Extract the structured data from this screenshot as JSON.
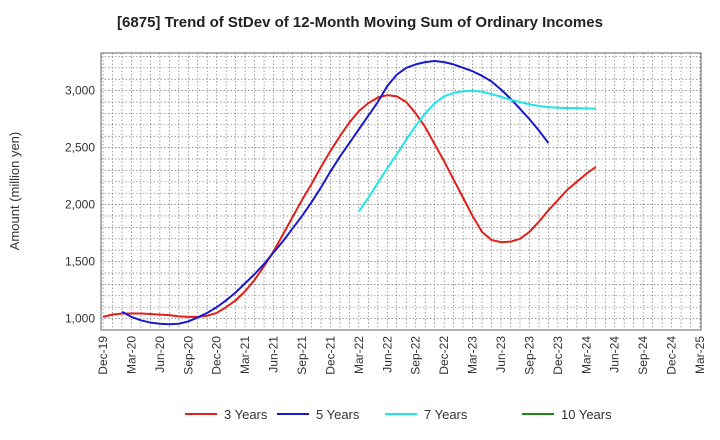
{
  "chart_data": {
    "type": "line",
    "title": "[6875]  Trend of StDev of 12-Month Moving Sum of Ordinary Incomes",
    "xlabel": "",
    "ylabel": "Amount (million yen)",
    "ylim": [
      900,
      3330
    ],
    "yticks": [
      1000,
      1500,
      2000,
      2500,
      3000
    ],
    "ytick_labels": [
      "1,000",
      "1,500",
      "2,000",
      "2,500",
      "3,000"
    ],
    "x_tick_labels": [
      "Dec-19",
      "Mar-20",
      "Jun-20",
      "Sep-20",
      "Dec-20",
      "Mar-21",
      "Jun-21",
      "Sep-21",
      "Dec-21",
      "Mar-22",
      "Jun-22",
      "Sep-22",
      "Dec-22",
      "Mar-23",
      "Jun-23",
      "Sep-23",
      "Dec-23",
      "Mar-24",
      "Jun-24",
      "Sep-24",
      "Dec-24",
      "Mar-25"
    ],
    "x_start": "Dec-19",
    "n_months": 64,
    "series": [
      {
        "name": "3 Years",
        "color": "#e0201b",
        "start_month": 0,
        "values": [
          1015,
          1035,
          1045,
          1045,
          1045,
          1040,
          1035,
          1030,
          1020,
          1015,
          1015,
          1025,
          1050,
          1100,
          1160,
          1240,
          1340,
          1460,
          1590,
          1740,
          1890,
          2040,
          2180,
          2330,
          2470,
          2600,
          2720,
          2820,
          2890,
          2940,
          2960,
          2950,
          2900,
          2800,
          2680,
          2530,
          2380,
          2220,
          2060,
          1900,
          1760,
          1690,
          1670,
          1675,
          1700,
          1760,
          1850,
          1950,
          2040,
          2130,
          2200,
          2270,
          2330
        ]
      },
      {
        "name": "5 Years",
        "color": "#1a1acc",
        "start_month": 2,
        "values": [
          1060,
          1015,
          985,
          965,
          955,
          950,
          955,
          975,
          1010,
          1050,
          1100,
          1160,
          1230,
          1310,
          1390,
          1480,
          1580,
          1680,
          1790,
          1900,
          2020,
          2150,
          2290,
          2420,
          2540,
          2660,
          2780,
          2900,
          3040,
          3140,
          3200,
          3230,
          3250,
          3260,
          3250,
          3230,
          3200,
          3170,
          3130,
          3080,
          3010,
          2930,
          2840,
          2750,
          2650,
          2540
        ]
      },
      {
        "name": "7 Years",
        "color": "#1ee6e6",
        "start_month": 27,
        "values": [
          1940,
          2060,
          2190,
          2320,
          2440,
          2570,
          2690,
          2800,
          2890,
          2950,
          2980,
          2995,
          3000,
          2990,
          2970,
          2945,
          2920,
          2900,
          2880,
          2865,
          2855,
          2850,
          2848,
          2846,
          2844,
          2842
        ]
      },
      {
        "name": "10 Years",
        "color": "#1a8a1a",
        "start_month": 0,
        "values": []
      }
    ]
  }
}
